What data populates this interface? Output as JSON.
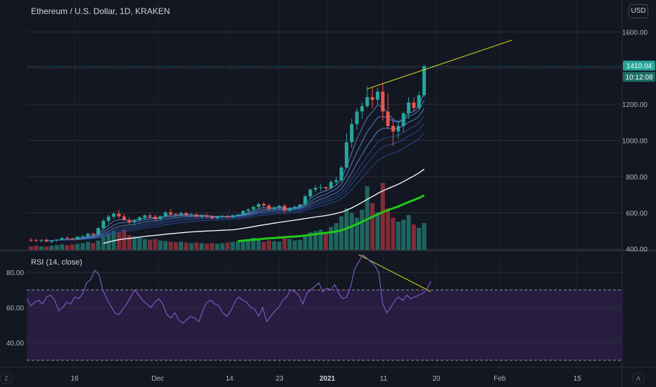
{
  "header": {
    "title": "Ethereum / U.S. Dollar, 1D, KRAKEN",
    "currency_button": "USD"
  },
  "rsi_panel": {
    "title": "RSI (14, close)"
  },
  "corner_buttons": {
    "left": "Z",
    "right": "A"
  },
  "price_badges": {
    "last_price": "1410.04",
    "countdown": "10:12:08"
  },
  "colors": {
    "background": "#131722",
    "up": "#26a69a",
    "down": "#ef5350",
    "trendline": "#d4d41a",
    "rsi_line": "#7e57c2",
    "rsi_band": "#2a1f45",
    "ema_fast": "#5b8ad4",
    "ema_slow": "#2b4f9a",
    "sma_white": "#ffffff",
    "sma_green": "#22c91a"
  },
  "chart_data": [
    {
      "type": "candlestick",
      "title": "Ethereum / U.S. Dollar, 1D, KRAKEN",
      "y_axis_ticks": [
        400,
        600,
        800,
        1000,
        1200,
        1400,
        1600
      ],
      "y_axis_tick_labels": [
        "400.00",
        "600.00",
        "800.00",
        "1000.00",
        "1200.00",
        "1600.00"
      ],
      "ylim": [
        395,
        1660
      ],
      "x_axis_labels": [
        "16",
        "Dec",
        "14",
        "23",
        "2021",
        "11",
        "20",
        "Feb",
        "15"
      ],
      "grid": true,
      "last_price": 1410.04,
      "candles": [
        [
          450,
          460,
          440,
          448
        ],
        [
          448,
          455,
          438,
          445
        ],
        [
          445,
          452,
          435,
          450
        ],
        [
          450,
          458,
          445,
          440
        ],
        [
          440,
          448,
          432,
          446
        ],
        [
          446,
          452,
          440,
          452
        ],
        [
          452,
          465,
          448,
          460
        ],
        [
          460,
          470,
          455,
          458
        ],
        [
          458,
          462,
          448,
          452
        ],
        [
          452,
          470,
          450,
          468
        ],
        [
          468,
          478,
          462,
          470
        ],
        [
          470,
          490,
          466,
          484
        ],
        [
          484,
          490,
          470,
          478
        ],
        [
          478,
          520,
          475,
          515
        ],
        [
          515,
          565,
          505,
          555
        ],
        [
          555,
          590,
          540,
          578
        ],
        [
          578,
          605,
          562,
          595
        ],
        [
          595,
          615,
          570,
          580
        ],
        [
          580,
          595,
          555,
          560
        ],
        [
          560,
          575,
          535,
          548
        ],
        [
          548,
          565,
          530,
          560
        ],
        [
          560,
          580,
          550,
          575
        ],
        [
          575,
          592,
          560,
          585
        ],
        [
          585,
          600,
          570,
          578
        ],
        [
          578,
          590,
          555,
          565
        ],
        [
          565,
          585,
          560,
          580
        ],
        [
          580,
          610,
          575,
          602
        ],
        [
          602,
          620,
          585,
          592
        ],
        [
          592,
          600,
          575,
          588
        ],
        [
          588,
          605,
          580,
          598
        ],
        [
          598,
          605,
          580,
          588
        ],
        [
          588,
          598,
          575,
          590
        ],
        [
          590,
          600,
          570,
          578
        ],
        [
          578,
          592,
          570,
          585
        ],
        [
          585,
          595,
          570,
          580
        ],
        [
          580,
          588,
          565,
          570
        ],
        [
          570,
          585,
          565,
          578
        ],
        [
          578,
          588,
          570,
          582
        ],
        [
          582,
          590,
          570,
          575
        ],
        [
          575,
          590,
          572,
          586
        ],
        [
          586,
          595,
          578,
          590
        ],
        [
          590,
          615,
          585,
          610
        ],
        [
          610,
          625,
          598,
          618
        ],
        [
          618,
          640,
          610,
          632
        ],
        [
          632,
          655,
          620,
          648
        ],
        [
          648,
          660,
          630,
          640
        ],
        [
          640,
          650,
          615,
          622
        ],
        [
          622,
          635,
          612,
          630
        ],
        [
          630,
          645,
          620,
          638
        ],
        [
          638,
          648,
          600,
          612
        ],
        [
          612,
          630,
          605,
          625
        ],
        [
          625,
          640,
          618,
          632
        ],
        [
          632,
          650,
          625,
          645
        ],
        [
          645,
          700,
          640,
          690
        ],
        [
          690,
          735,
          680,
          728
        ],
        [
          728,
          750,
          715,
          738
        ],
        [
          738,
          760,
          720,
          742
        ],
        [
          742,
          745,
          720,
          735
        ],
        [
          735,
          780,
          728,
          770
        ],
        [
          770,
          800,
          750,
          780
        ],
        [
          780,
          860,
          770,
          850
        ],
        [
          850,
          1040,
          845,
          990
        ],
        [
          990,
          1120,
          960,
          1090
        ],
        [
          1090,
          1180,
          1060,
          1160
        ],
        [
          1160,
          1210,
          1120,
          1190
        ],
        [
          1190,
          1300,
          1180,
          1240
        ],
        [
          1240,
          1290,
          1180,
          1225
        ],
        [
          1225,
          1290,
          1195,
          1270
        ],
        [
          1270,
          1320,
          1110,
          1160
        ],
        [
          1160,
          1260,
          1060,
          1080
        ],
        [
          1080,
          1120,
          970,
          1050
        ],
        [
          1050,
          1100,
          1010,
          1080
        ],
        [
          1080,
          1160,
          1045,
          1150
        ],
        [
          1150,
          1240,
          1120,
          1210
        ],
        [
          1210,
          1240,
          1160,
          1180
        ],
        [
          1180,
          1270,
          1170,
          1250
        ],
        [
          1250,
          1420,
          1240,
          1410
        ]
      ],
      "volume_relative": [
        0.05,
        0.06,
        0.05,
        0.05,
        0.06,
        0.07,
        0.08,
        0.07,
        0.08,
        0.09,
        0.1,
        0.12,
        0.1,
        0.14,
        0.22,
        0.25,
        0.28,
        0.26,
        0.3,
        0.22,
        0.2,
        0.18,
        0.16,
        0.15,
        0.16,
        0.14,
        0.13,
        0.12,
        0.11,
        0.12,
        0.11,
        0.1,
        0.11,
        0.1,
        0.09,
        0.1,
        0.09,
        0.1,
        0.11,
        0.12,
        0.13,
        0.14,
        0.16,
        0.18,
        0.15,
        0.12,
        0.14,
        0.13,
        0.12,
        0.18,
        0.16,
        0.14,
        0.15,
        0.2,
        0.26,
        0.28,
        0.3,
        0.26,
        0.34,
        0.4,
        0.5,
        0.62,
        0.55,
        0.48,
        0.6,
        0.95,
        0.7,
        0.56,
        1.0,
        0.62,
        0.48,
        0.42,
        0.45,
        0.52,
        0.38,
        0.33,
        0.4
      ],
      "trendline": {
        "from": [
          65,
          1285
        ],
        "to": [
          93,
          1555
        ]
      }
    },
    {
      "type": "line",
      "title": "RSI (14, close)",
      "y_axis_tick_labels": [
        "40.00",
        "60.00",
        "80.00"
      ],
      "ylim": [
        26,
        90
      ],
      "bands": [
        30,
        70
      ],
      "values": [
        65,
        61,
        63,
        64,
        62,
        66,
        67,
        64,
        58,
        60,
        63,
        62,
        66,
        65,
        68,
        74,
        76,
        81,
        79,
        70,
        65,
        61,
        57,
        56,
        59,
        62,
        66,
        70,
        67,
        64,
        62,
        60,
        63,
        65,
        62,
        56,
        54,
        57,
        53,
        51,
        53,
        55,
        54,
        52,
        58,
        63,
        64,
        62,
        61,
        57,
        55,
        58,
        63,
        66,
        64,
        63,
        60,
        59,
        55,
        60,
        52,
        55,
        58,
        60,
        64,
        66,
        70,
        69,
        67,
        62,
        68,
        70,
        72,
        74,
        69,
        71,
        70,
        73,
        68,
        65,
        66,
        72,
        82,
        86,
        90,
        88,
        86,
        84,
        80,
        62,
        57,
        60,
        64,
        66,
        64,
        67,
        65,
        66,
        67,
        68,
        70,
        75
      ],
      "trendline": {
        "from": [
          83,
          90
        ],
        "to": [
          101,
          69
        ]
      }
    }
  ]
}
